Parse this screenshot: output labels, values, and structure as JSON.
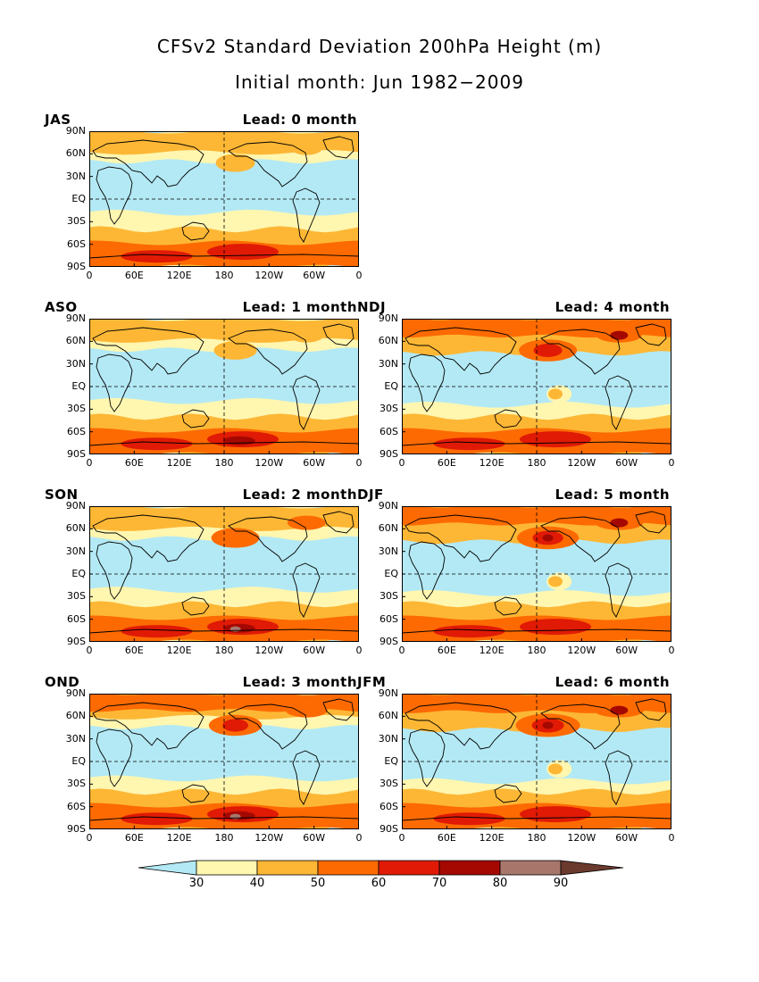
{
  "header": {
    "title": "CFSv2 Standard Deviation 200hPa Height (m)",
    "subtitle": "Initial month: Jun 1982−2009"
  },
  "colors": {
    "below30": "#b3e9f5",
    "c30_40": "#fff6b0",
    "c40_50": "#fdb735",
    "c50_60": "#fd6a02",
    "c60_70": "#e01a05",
    "c70_80": "#a50800",
    "c80_90": "#a8766b",
    "above90": "#6b3a2e",
    "coast": "#000000"
  },
  "axes": {
    "y_ticks": [
      "90N",
      "60N",
      "30N",
      "EQ",
      "30S",
      "60S",
      "90S"
    ],
    "x_ticks": [
      "0",
      "60E",
      "120E",
      "180",
      "120W",
      "60W",
      "0"
    ]
  },
  "legend": {
    "labels": [
      "30",
      "40",
      "50",
      "60",
      "70",
      "80",
      "90"
    ]
  },
  "chart_data": {
    "type": "heatmap",
    "title": "CFSv2 Standard Deviation 200hPa Height (m)",
    "subtitle": "Initial month: Jun 1982−2009",
    "levels": [
      30,
      40,
      50,
      60,
      70,
      80,
      90
    ],
    "x_range": [
      "0",
      "0"
    ],
    "y_range": [
      "90S",
      "90N"
    ],
    "panels": [
      {
        "season": "JAS",
        "lead": "Lead: 0 month",
        "lead_months": 0,
        "intensity": 0.0
      },
      {
        "season": "ASO",
        "lead": "Lead: 1 month",
        "lead_months": 1,
        "intensity": 0.15
      },
      {
        "season": "SON",
        "lead": "Lead: 2 month",
        "lead_months": 2,
        "intensity": 0.35
      },
      {
        "season": "OND",
        "lead": "Lead: 3 month",
        "lead_months": 3,
        "intensity": 0.55
      },
      {
        "season": "NDJ",
        "lead": "Lead: 4 month",
        "lead_months": 4,
        "intensity": 0.75
      },
      {
        "season": "DJF",
        "lead": "Lead: 5 month",
        "lead_months": 5,
        "intensity": 0.9
      },
      {
        "season": "JFM",
        "lead": "Lead: 6 month",
        "lead_months": 6,
        "intensity": 1.0
      }
    ]
  }
}
